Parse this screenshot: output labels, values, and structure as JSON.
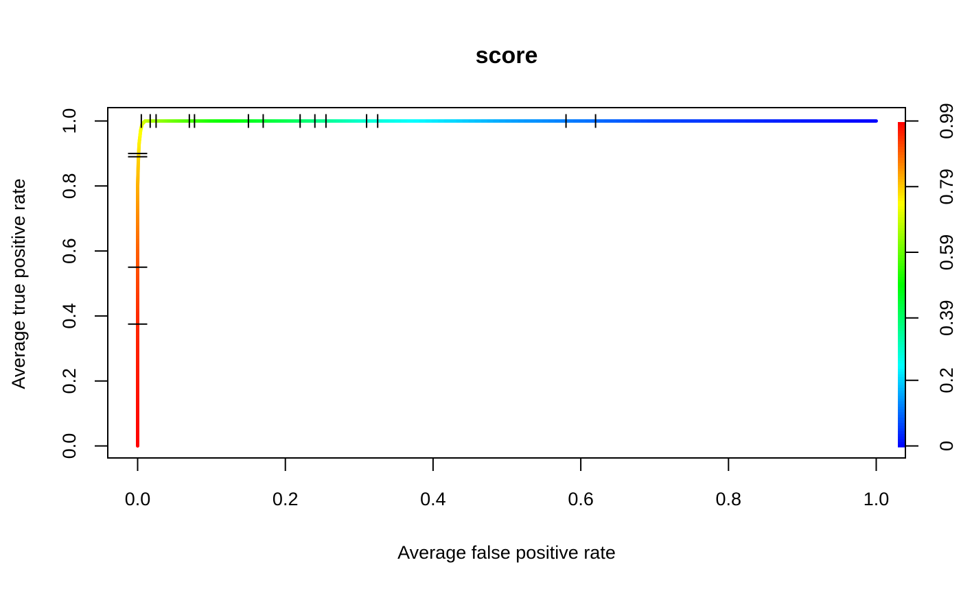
{
  "chart_data": {
    "type": "line",
    "title": "score",
    "xlabel": "Average false positive rate",
    "ylabel": "Average true positive rate",
    "xlim": [
      0,
      1
    ],
    "ylim": [
      0,
      1
    ],
    "x_ticks": [
      "0.0",
      "0.2",
      "0.4",
      "0.6",
      "0.8",
      "1.0"
    ],
    "y_ticks": [
      "0.0",
      "0.2",
      "0.4",
      "0.6",
      "0.8",
      "1.0"
    ],
    "colorbar": {
      "tick_labels": [
        "0",
        "0.2",
        "0.39",
        "0.59",
        "0.79",
        "0.99"
      ],
      "tick_values": [
        0,
        0.2,
        0.39,
        0.59,
        0.79,
        0.99
      ],
      "range": [
        0,
        0.99
      ],
      "colors": [
        "#0000ff",
        "#00ffff",
        "#00ff00",
        "#ffff00",
        "#ff0000"
      ]
    },
    "series": [
      {
        "x": [
          0,
          0,
          0,
          0,
          0,
          0.001,
          0.002,
          0.004,
          0.006,
          0.01,
          0.02,
          0.05,
          0.1,
          0.2,
          0.3,
          0.5,
          0.7,
          1.0
        ],
        "y": [
          0,
          0.2,
          0.4,
          0.6,
          0.8,
          0.88,
          0.93,
          0.97,
          0.99,
          1.0,
          1.0,
          1.0,
          1.0,
          1.0,
          1.0,
          1.0,
          1.0,
          1.0
        ],
        "cutoff": [
          0.99,
          0.97,
          0.95,
          0.9,
          0.82,
          0.79,
          0.76,
          0.74,
          0.72,
          0.7,
          0.66,
          0.6,
          0.52,
          0.42,
          0.3,
          0.16,
          0.07,
          0
        ]
      }
    ],
    "error_bars_tpr": [
      {
        "x": 0.0,
        "y": 0.375
      },
      {
        "x": 0.0,
        "y": 0.55
      },
      {
        "x": 0.0,
        "y": 0.89
      },
      {
        "x": 0.0,
        "y": 0.9
      }
    ],
    "error_bars_fpr": [
      {
        "x": 0.005,
        "y": 1.0
      },
      {
        "x": 0.017,
        "y": 1.0
      },
      {
        "x": 0.025,
        "y": 1.0
      },
      {
        "x": 0.07,
        "y": 1.0
      },
      {
        "x": 0.077,
        "y": 1.0
      },
      {
        "x": 0.15,
        "y": 1.0
      },
      {
        "x": 0.17,
        "y": 1.0
      },
      {
        "x": 0.22,
        "y": 1.0
      },
      {
        "x": 0.24,
        "y": 1.0
      },
      {
        "x": 0.255,
        "y": 1.0
      },
      {
        "x": 0.31,
        "y": 1.0
      },
      {
        "x": 0.325,
        "y": 1.0
      },
      {
        "x": 0.58,
        "y": 1.0
      },
      {
        "x": 0.62,
        "y": 1.0
      }
    ],
    "grid": false,
    "legend": "none"
  }
}
